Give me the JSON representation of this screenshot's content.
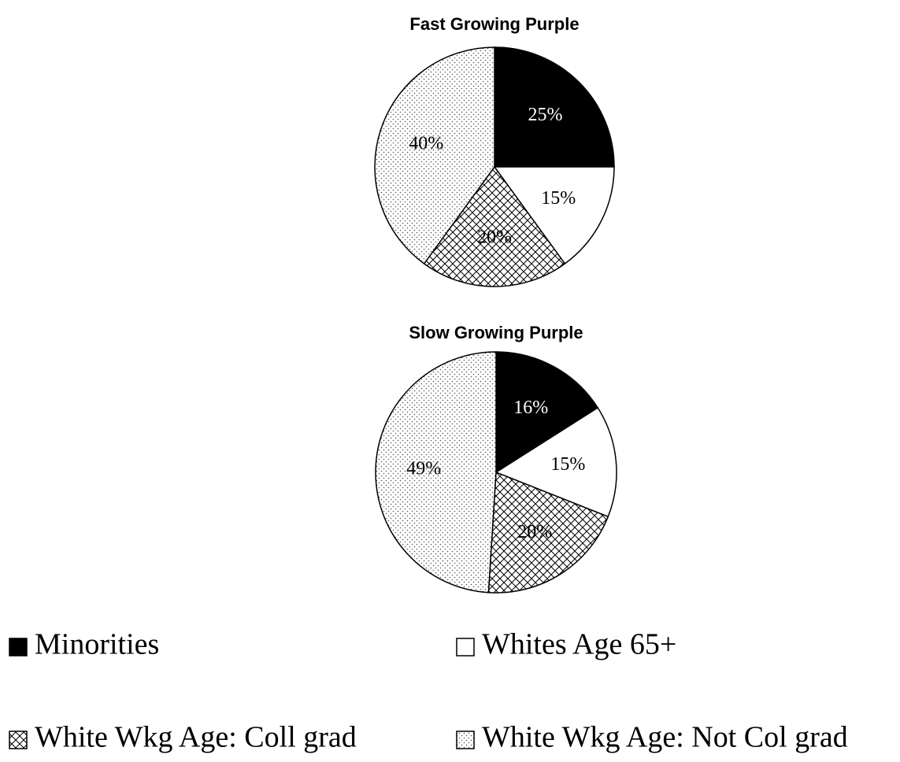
{
  "chart_data": [
    {
      "type": "pie",
      "title": "Fast Growing Purple",
      "values": [
        25,
        15,
        20,
        40
      ],
      "value_labels": [
        "25%",
        "15%",
        "20%",
        "40%"
      ]
    },
    {
      "type": "pie",
      "title": "Slow Growing Purple",
      "values": [
        16,
        15,
        20,
        49
      ],
      "value_labels": [
        "16%",
        "15%",
        "20%",
        "49%"
      ]
    }
  ],
  "legend": {
    "categories": [
      "Minorities",
      "Whites Age 65+",
      "White Wkg Age: Coll grad",
      "White Wkg Age: Not Col grad"
    ],
    "fills": [
      "black",
      "white",
      "crosshatch",
      "dots"
    ]
  }
}
